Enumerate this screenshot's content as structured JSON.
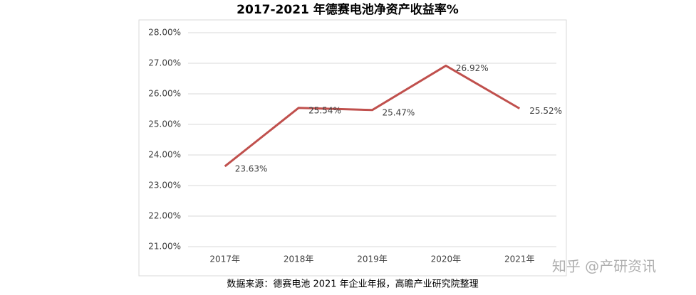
{
  "chart_data": {
    "type": "line",
    "title": "2017-2021 年德赛电池净资产收益率%",
    "categories": [
      "2017年",
      "2018年",
      "2019年",
      "2020年",
      "2021年"
    ],
    "series": [
      {
        "name": "净资产收益率",
        "color": "#c0504d",
        "values": [
          23.63,
          25.54,
          25.47,
          26.92,
          25.52
        ],
        "value_labels": [
          "23.63%",
          "25.54%",
          "25.47%",
          "26.92%",
          "25.52%"
        ]
      }
    ],
    "ylim": [
      21,
      28
    ],
    "yticks": [
      {
        "value": 21,
        "label": "21.00%"
      },
      {
        "value": 22,
        "label": "22.00%"
      },
      {
        "value": 23,
        "label": "23.00%"
      },
      {
        "value": 24,
        "label": "24.00%"
      },
      {
        "value": 25,
        "label": "25.00%"
      },
      {
        "value": 26,
        "label": "26.00%"
      },
      {
        "value": 27,
        "label": "27.00%"
      },
      {
        "value": 28,
        "label": "28.00%"
      }
    ],
    "grid": true,
    "source": "数据来源：德赛电池 2021 年企业年报，高瞻产业研究院整理",
    "watermark": "知乎 @产研资讯"
  }
}
